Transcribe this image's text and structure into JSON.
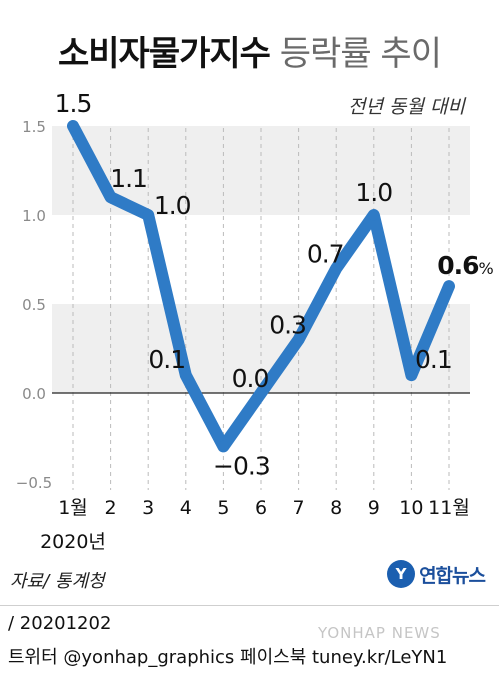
{
  "title": {
    "bold": "소비자물가지수",
    "light": "등락률 추이"
  },
  "subtitle": "전년 동월 대비",
  "source": "자료/ 통계청",
  "logo": {
    "mark": "Y",
    "text": "연합뉴스"
  },
  "footer": {
    "date": "/ 20201202",
    "sns": "트위터 @yonhap_graphics  페이스북 tuney.kr/LeYN1"
  },
  "watermark": "YONHAP NEWS",
  "colors": {
    "line": "#2f7bc6",
    "band": "#efefef",
    "axis": "#222222",
    "grid": "#bbbbbb"
  },
  "chart_data": {
    "type": "line",
    "x": [
      "1월",
      "2",
      "3",
      "4",
      "5",
      "6",
      "7",
      "8",
      "9",
      "10",
      "11월"
    ],
    "year_label": "2020년",
    "series": [
      {
        "values": [
          1.5,
          1.1,
          1.0,
          0.1,
          -0.3,
          0.0,
          0.3,
          0.7,
          1.0,
          0.1,
          0.6
        ]
      }
    ],
    "data_labels": [
      "1.5",
      "1.1",
      "1.0",
      "0.1",
      "−0.3",
      "0.0",
      "0.3",
      "0.7",
      "1.0",
      "0.1",
      "0.6"
    ],
    "last_label_unit": "%",
    "y_ticks": [
      "1.5",
      "1.0",
      "0.5",
      "0.0",
      "−0.5"
    ],
    "y_tick_values": [
      1.5,
      1.0,
      0.5,
      0.0,
      -0.5
    ],
    "ylim": [
      -0.5,
      1.5
    ],
    "bands": [
      [
        1.0,
        1.5
      ],
      [
        0.0,
        0.5
      ]
    ],
    "grid": true
  }
}
